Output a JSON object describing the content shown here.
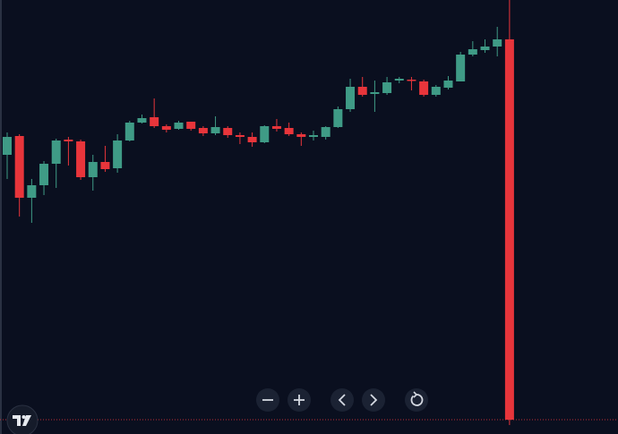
{
  "chart_data": {
    "type": "candlestick",
    "open": [
      312,
      333,
      264,
      278,
      302,
      329,
      327,
      287,
      304,
      297,
      328,
      348,
      354,
      344,
      341,
      349,
      342,
      336,
      342,
      334,
      332,
      326,
      344,
      342,
      335,
      332,
      332,
      343,
      363,
      388,
      380,
      381,
      395,
      396,
      394,
      379,
      387,
      394,
      424,
      429,
      433,
      441
    ],
    "high": [
      337,
      335,
      285,
      305,
      330,
      332,
      329,
      312,
      322,
      335,
      350,
      357,
      375,
      346,
      350,
      349,
      344,
      355,
      344,
      337,
      337,
      345,
      352,
      348,
      337,
      339,
      344,
      366,
      397,
      399,
      395,
      399,
      399,
      399,
      396,
      390,
      400,
      427,
      439,
      441,
      455,
      485
    ],
    "low": [
      285,
      243,
      236,
      267,
      275,
      300,
      284,
      272,
      293,
      292,
      327,
      347,
      342,
      337,
      340,
      339,
      333,
      334,
      331,
      324,
      321,
      325,
      338,
      333,
      322,
      328,
      329,
      342,
      360,
      377,
      360,
      379,
      392,
      384,
      377,
      377,
      385,
      394,
      422,
      426,
      422,
      10
    ],
    "close": [
      332,
      264,
      278,
      302,
      328,
      327,
      287,
      304,
      296,
      328,
      348,
      353,
      344,
      340,
      348,
      341,
      336,
      343,
      334,
      332,
      326,
      344,
      341,
      335,
      332,
      334,
      343,
      363,
      388,
      379,
      382,
      393,
      397,
      395,
      379,
      388,
      395,
      424,
      430,
      433,
      441,
      16
    ],
    "up_color": "#3f9b86",
    "down_color": "#e8353b",
    "ylim": [
      0,
      485
    ],
    "price_line": true
  }
}
